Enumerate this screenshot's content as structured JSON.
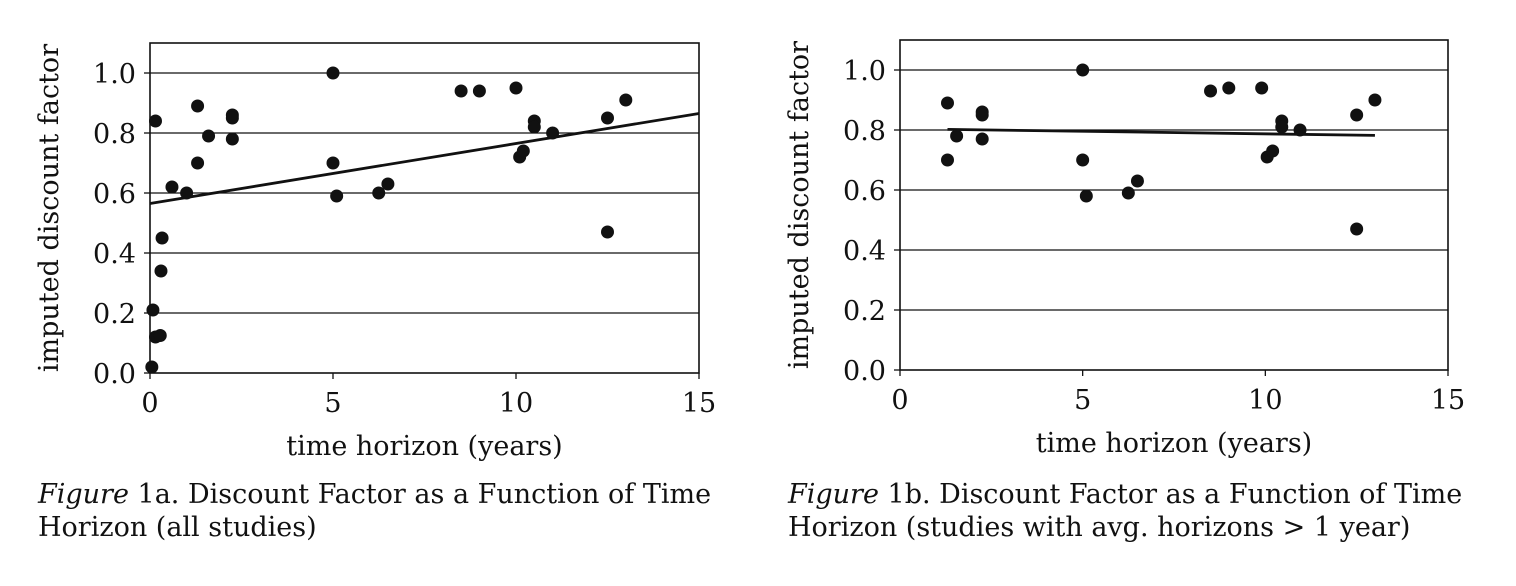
{
  "figures": [
    {
      "caption": {
        "figure_word": "Figure",
        "number": "1a.",
        "text_line1": "Discount Factor as a Function of Time",
        "text_line2": "Horizon (all studies)"
      }
    },
    {
      "caption": {
        "figure_word": "Figure",
        "number": "1b.",
        "text_line1": "Discount Factor as a Function of Time",
        "text_line2": "Horizon (studies with avg. horizons > 1 year)"
      }
    }
  ],
  "chart_data": [
    {
      "type": "scatter",
      "title": "",
      "xlabel": "time horizon (years)",
      "ylabel": "imputed discount factor",
      "xlim": [
        0,
        15
      ],
      "ylim": [
        0,
        1.1
      ],
      "xticks": [
        0,
        5,
        10,
        15
      ],
      "xtick_labels": [
        "0",
        "5",
        "10",
        "15"
      ],
      "yticks": [
        0,
        0.2,
        0.4,
        0.6,
        0.8,
        1.0
      ],
      "ytick_labels": [
        "0.0",
        "0.2",
        "0.4",
        "0.6",
        "0.8",
        "1.0"
      ],
      "grid": "horizontal",
      "points": [
        {
          "x": 0.05,
          "y": 0.02
        },
        {
          "x": 0.08,
          "y": 0.21
        },
        {
          "x": 0.15,
          "y": 0.12
        },
        {
          "x": 0.28,
          "y": 0.125
        },
        {
          "x": 0.15,
          "y": 0.84
        },
        {
          "x": 0.3,
          "y": 0.34
        },
        {
          "x": 0.33,
          "y": 0.45
        },
        {
          "x": 0.6,
          "y": 0.62
        },
        {
          "x": 1.0,
          "y": 0.6
        },
        {
          "x": 1.3,
          "y": 0.89
        },
        {
          "x": 1.3,
          "y": 0.7
        },
        {
          "x": 1.6,
          "y": 0.79
        },
        {
          "x": 2.25,
          "y": 0.86
        },
        {
          "x": 2.25,
          "y": 0.85
        },
        {
          "x": 2.25,
          "y": 0.78
        },
        {
          "x": 5.0,
          "y": 1.0
        },
        {
          "x": 5.0,
          "y": 0.7
        },
        {
          "x": 5.1,
          "y": 0.59
        },
        {
          "x": 6.25,
          "y": 0.6
        },
        {
          "x": 6.5,
          "y": 0.63
        },
        {
          "x": 8.5,
          "y": 0.94
        },
        {
          "x": 9.0,
          "y": 0.94
        },
        {
          "x": 10.0,
          "y": 0.95
        },
        {
          "x": 10.1,
          "y": 0.72
        },
        {
          "x": 10.2,
          "y": 0.74
        },
        {
          "x": 10.5,
          "y": 0.84
        },
        {
          "x": 10.5,
          "y": 0.82
        },
        {
          "x": 11.0,
          "y": 0.8
        },
        {
          "x": 12.5,
          "y": 0.85
        },
        {
          "x": 12.5,
          "y": 0.47
        },
        {
          "x": 13.0,
          "y": 0.91
        }
      ],
      "trendline": {
        "x": [
          0,
          15
        ],
        "y": [
          0.565,
          0.865
        ]
      }
    },
    {
      "type": "scatter",
      "title": "",
      "xlabel": "time horizon (years)",
      "ylabel": "imputed discount factor",
      "xlim": [
        0,
        15
      ],
      "ylim": [
        0,
        1.1
      ],
      "xticks": [
        0,
        5,
        10,
        15
      ],
      "xtick_labels": [
        "0",
        "5",
        "10",
        "15"
      ],
      "yticks": [
        0,
        0.2,
        0.4,
        0.6,
        0.8,
        1.0
      ],
      "ytick_labels": [
        "0.0",
        "0.2",
        "0.4",
        "0.6",
        "0.8",
        "1.0"
      ],
      "grid": "horizontal",
      "points": [
        {
          "x": 1.3,
          "y": 0.89
        },
        {
          "x": 1.3,
          "y": 0.7
        },
        {
          "x": 1.55,
          "y": 0.78
        },
        {
          "x": 2.25,
          "y": 0.86
        },
        {
          "x": 2.25,
          "y": 0.85
        },
        {
          "x": 2.25,
          "y": 0.77
        },
        {
          "x": 5.0,
          "y": 1.0
        },
        {
          "x": 5.0,
          "y": 0.7
        },
        {
          "x": 5.1,
          "y": 0.58
        },
        {
          "x": 6.25,
          "y": 0.59
        },
        {
          "x": 6.5,
          "y": 0.63
        },
        {
          "x": 8.5,
          "y": 0.93
        },
        {
          "x": 9.0,
          "y": 0.94
        },
        {
          "x": 9.9,
          "y": 0.94
        },
        {
          "x": 10.05,
          "y": 0.71
        },
        {
          "x": 10.2,
          "y": 0.73
        },
        {
          "x": 10.45,
          "y": 0.83
        },
        {
          "x": 10.45,
          "y": 0.81
        },
        {
          "x": 10.95,
          "y": 0.8
        },
        {
          "x": 12.5,
          "y": 0.85
        },
        {
          "x": 12.5,
          "y": 0.47
        },
        {
          "x": 13.0,
          "y": 0.9
        }
      ],
      "trendline": {
        "x": [
          1.3,
          13.0
        ],
        "y": [
          0.802,
          0.782
        ]
      }
    }
  ]
}
